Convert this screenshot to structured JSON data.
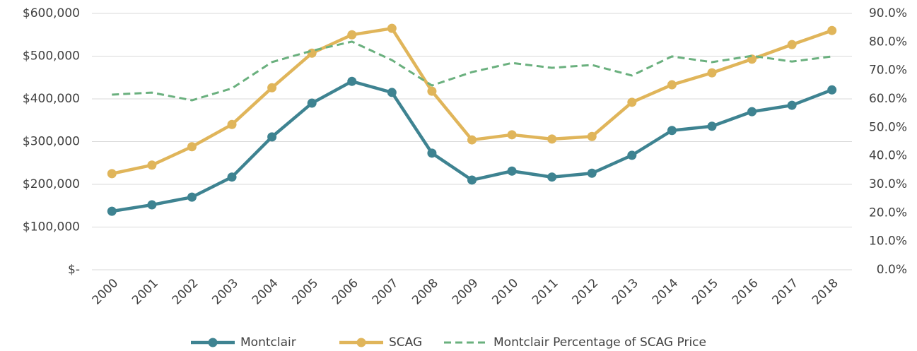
{
  "chart_data": {
    "type": "line",
    "categories": [
      "2000",
      "2001",
      "2002",
      "2003",
      "2004",
      "2005",
      "2006",
      "2007",
      "2008",
      "2009",
      "2010",
      "2011",
      "2012",
      "2013",
      "2014",
      "2015",
      "2016",
      "2017",
      "2018"
    ],
    "series": [
      {
        "name": "Montclair",
        "color": "#3e8391",
        "values": [
          137000,
          152000,
          170000,
          217000,
          311000,
          390000,
          441000,
          415000,
          273000,
          210000,
          231000,
          217000,
          226000,
          268000,
          326000,
          336000,
          370000,
          385000,
          421000
        ]
      },
      {
        "name": "SCAG",
        "color": "#e0b55a",
        "values": [
          225000,
          245000,
          288000,
          340000,
          426000,
          507000,
          550000,
          565000,
          418000,
          304000,
          316000,
          306000,
          312000,
          392000,
          433000,
          461000,
          493000,
          527000,
          560000
        ]
      },
      {
        "name": "Montclair Percentage of SCAG Price",
        "color": "#6ab07e",
        "dashed": true,
        "axis": "y2",
        "values": [
          61.5,
          62.2,
          59.5,
          63.7,
          72.9,
          76.9,
          80.1,
          73.6,
          64.7,
          69.4,
          72.6,
          70.9,
          71.9,
          68.2,
          74.9,
          72.9,
          75.1,
          73.1,
          74.9
        ]
      }
    ],
    "ylim": [
      0,
      600000
    ],
    "yticks": [
      {
        "value": 0,
        "label": "$-"
      },
      {
        "value": 100000,
        "label": "$100,000"
      },
      {
        "value": 200000,
        "label": "$200,000"
      },
      {
        "value": 300000,
        "label": "$300,000"
      },
      {
        "value": 400000,
        "label": "$400,000"
      },
      {
        "value": 500000,
        "label": "$500,000"
      },
      {
        "value": 600000,
        "label": "$600,000"
      }
    ],
    "y2lim": [
      0,
      90
    ],
    "y2ticks": [
      {
        "value": 0,
        "label": "0.0%"
      },
      {
        "value": 10,
        "label": "10.0%"
      },
      {
        "value": 20,
        "label": "20.0%"
      },
      {
        "value": 30,
        "label": "30.0%"
      },
      {
        "value": 40,
        "label": "40.0%"
      },
      {
        "value": 50,
        "label": "50.0%"
      },
      {
        "value": 60,
        "label": "60.0%"
      },
      {
        "value": 70,
        "label": "70.0%"
      },
      {
        "value": 80,
        "label": "80.0%"
      },
      {
        "value": 90,
        "label": "90.0%"
      }
    ],
    "grid": true,
    "legend": "bottom"
  }
}
